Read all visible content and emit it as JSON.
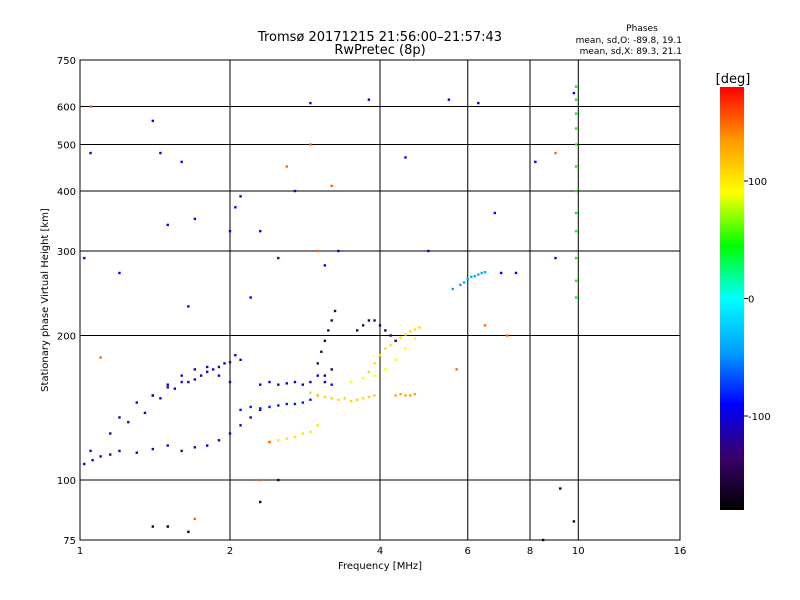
{
  "chart_data": {
    "type": "scatter",
    "title": "Tromsø 20171215 21:56:00–21:57:43",
    "subtitle": "RwPretec (8p)",
    "xlabel": "Frequency [MHz]",
    "ylabel": "Stationary phase Virtual Height [km]",
    "x_scale": "log",
    "y_scale": "log",
    "xlim": [
      1,
      16
    ],
    "ylim": [
      75,
      750
    ],
    "x_ticks": [
      1,
      2,
      4,
      6,
      8,
      10,
      16
    ],
    "y_ticks": [
      75,
      100,
      200,
      300,
      400,
      500,
      600,
      750
    ],
    "grid": true,
    "stats": {
      "header": "Phases",
      "line_o": "mean, sd,O: -89.8, 19.1",
      "line_x": "mean, sd,X: 89.3, 21.1"
    },
    "colorbar": {
      "label": "[deg]",
      "range": [
        -180,
        180
      ],
      "ticks": [
        100,
        0,
        -100
      ],
      "colors": [
        "#000000",
        "#3a006a",
        "#0000ff",
        "#00a0ff",
        "#00ffff",
        "#00ff00",
        "#ffff00",
        "#ff9900",
        "#ff0000"
      ]
    },
    "series": [
      {
        "x": [
          1.02,
          1.06,
          1.1,
          1.15,
          1.2,
          1.3,
          1.4,
          1.5,
          1.6,
          1.7,
          1.8,
          1.9,
          2.0,
          2.1,
          2.2,
          2.3
        ],
        "y": [
          108,
          110,
          112,
          113,
          115,
          114,
          116,
          118,
          115,
          117,
          118,
          121,
          125,
          130,
          135,
          140
        ],
        "value": -110
      },
      {
        "x": [
          1.05,
          1.15,
          1.25,
          1.35,
          1.45,
          1.55,
          1.65,
          1.75,
          1.85,
          1.95,
          2.05
        ],
        "y": [
          115,
          125,
          132,
          138,
          148,
          155,
          160,
          165,
          170,
          175,
          182
        ],
        "value": -115
      },
      {
        "x": [
          1.2,
          1.3,
          1.4,
          1.5,
          1.6,
          1.7,
          1.8,
          1.9,
          2.0,
          2.1
        ],
        "y": [
          135,
          145,
          150,
          156,
          160,
          162,
          168,
          172,
          176,
          178
        ],
        "value": -120
      },
      {
        "x": [
          1.4,
          1.5,
          1.6,
          1.7,
          1.8,
          1.9,
          2.0
        ],
        "y": [
          150,
          158,
          165,
          170,
          172,
          165,
          160
        ],
        "value": -105
      },
      {
        "x": [
          2.1,
          2.2,
          2.3,
          2.4,
          2.5,
          2.6,
          2.7,
          2.8,
          2.9,
          3.0
        ],
        "y": [
          140,
          142,
          141,
          142,
          143,
          144,
          144,
          145,
          147,
          150
        ],
        "value": -85
      },
      {
        "x": [
          2.3,
          2.4,
          2.5,
          2.6,
          2.7,
          2.8,
          2.9,
          3.0,
          3.1,
          3.2
        ],
        "y": [
          158,
          160,
          158,
          159,
          160,
          158,
          160,
          165,
          160,
          158
        ],
        "value": -100
      },
      {
        "x": [
          2.4,
          2.5,
          2.6,
          2.7,
          2.8,
          2.9,
          3.0
        ],
        "y": [
          120,
          121,
          122,
          123,
          125,
          126,
          130
        ],
        "value": 100
      },
      {
        "x": [
          2.9,
          3.0,
          3.1,
          3.2,
          3.3,
          3.4,
          3.5,
          3.6,
          3.7,
          3.8,
          3.9
        ],
        "y": [
          152,
          150,
          149,
          148,
          147,
          148,
          146,
          147,
          148,
          149,
          150
        ],
        "value": 108
      },
      {
        "x": [
          3.5,
          3.7,
          3.9,
          4.1,
          4.3,
          4.5,
          4.7
        ],
        "y": [
          160,
          163,
          165,
          170,
          178,
          188,
          197
        ],
        "value": 90
      },
      {
        "x": [
          3.8,
          3.9,
          4.0,
          4.1,
          4.2,
          4.3,
          4.4,
          4.5,
          4.6,
          4.7,
          4.8
        ],
        "y": [
          168,
          175,
          182,
          188,
          191,
          195,
          198,
          201,
          204,
          206,
          208
        ],
        "value": 105
      },
      {
        "x": [
          4.3,
          4.4,
          4.5,
          4.6,
          4.7
        ],
        "y": [
          150,
          151,
          150,
          150,
          151
        ],
        "value": 130
      },
      {
        "x": [
          3.0,
          3.05,
          3.1,
          3.15,
          3.2,
          3.25,
          3.1,
          3.2
        ],
        "y": [
          175,
          185,
          195,
          205,
          215,
          225,
          165,
          170
        ],
        "value": -150
      },
      {
        "x": [
          3.6,
          3.7,
          3.8,
          3.9,
          4.0,
          4.1,
          4.2,
          4.3
        ],
        "y": [
          205,
          210,
          215,
          215,
          210,
          205,
          200,
          195
        ],
        "value": -145
      },
      {
        "x": [
          5.6,
          5.8,
          5.9,
          6.0,
          6.1,
          6.2,
          6.3,
          6.4,
          6.5
        ],
        "y": [
          250,
          255,
          258,
          262,
          265,
          266,
          268,
          270,
          271
        ],
        "value": -40
      },
      {
        "x": [
          9.9,
          9.9,
          9.9,
          9.9,
          9.9,
          9.9,
          9.9,
          9.9,
          9.9,
          9.9,
          9.9,
          9.9
        ],
        "y": [
          240,
          260,
          290,
          330,
          360,
          400,
          450,
          500,
          540,
          580,
          620,
          660
        ],
        "value": 40
      },
      {
        "x": [
          1.02,
          1.05,
          1.2,
          1.4,
          1.45,
          1.5,
          1.6,
          1.65,
          1.7,
          2.0,
          2.05,
          2.1,
          2.2,
          2.3,
          2.5,
          2.7,
          2.9,
          3.1,
          3.3,
          3.8,
          4.5,
          5.0,
          5.5,
          6.3,
          6.8,
          7.0,
          7.5,
          8.2,
          9.0,
          9.8
        ],
        "y": [
          290,
          480,
          270,
          560,
          480,
          340,
          460,
          230,
          350,
          330,
          370,
          390,
          240,
          330,
          290,
          400,
          610,
          280,
          300,
          620,
          470,
          300,
          620,
          610,
          360,
          270,
          270,
          460,
          290,
          640
        ],
        "value": -95
      },
      {
        "x": [
          1.05,
          1.1,
          1.5,
          1.7,
          2.3,
          2.4,
          2.6,
          2.9,
          3.0,
          3.2,
          5.7,
          6.5,
          7.2,
          9.0
        ],
        "y": [
          600,
          180,
          80,
          83,
          100,
          120,
          450,
          500,
          300,
          410,
          170,
          210,
          200,
          480
        ],
        "value": 150
      },
      {
        "x": [
          1.4,
          1.5,
          1.65,
          2.3,
          2.5,
          8.5,
          9.2,
          9.8
        ],
        "y": [
          80,
          80,
          78,
          90,
          100,
          75,
          96,
          82
        ],
        "value": -160
      }
    ]
  }
}
